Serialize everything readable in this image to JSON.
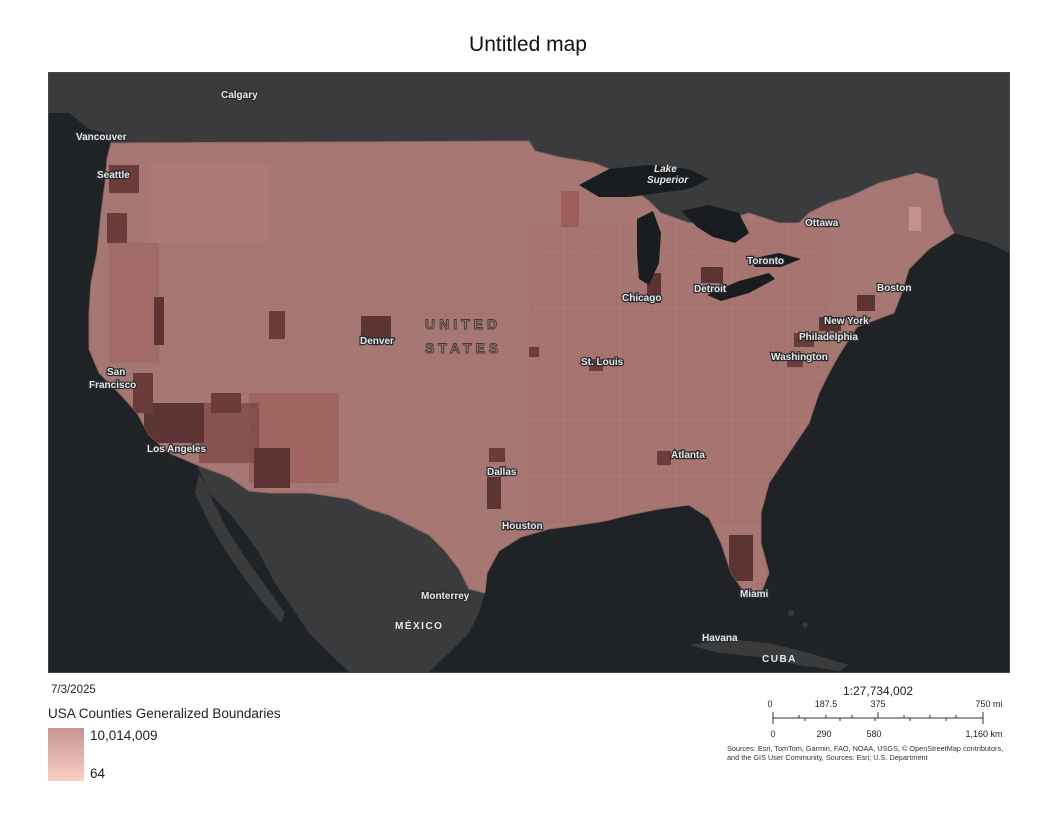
{
  "map": {
    "title": "Untitled map",
    "date": "7/3/2025",
    "legend": {
      "layer_title": "USA Counties Generalized Boundaries",
      "max_label": "10,014,009",
      "min_label": "64",
      "ramp_colors": [
        "#c79591",
        "#fbcfc7"
      ]
    },
    "scale": {
      "ratio": "1:27,734,002",
      "miles_ticks": [
        "0",
        "187.5",
        "375",
        "750 mi"
      ],
      "km_ticks": [
        "0",
        "290",
        "580",
        "1,160 km"
      ]
    },
    "attribution": "Sources: Esri, TomTom, Garmin, FAO, NOAA, USGS, © OpenStreetMap contributors, and the GIS User Community, Sources: Esri; U.S. Department",
    "basemap_colors": {
      "water": "#1f2326",
      "land": "#3a3b3c",
      "lake": "#1a1d20"
    },
    "choropleth_colors": {
      "low": "#a77773",
      "mid": "#b47a74",
      "high": "#5b3433"
    },
    "place_labels": {
      "calgary": "Calgary",
      "vancouver": "Vancouver",
      "seattle": "Seattle",
      "lake_superior_1": "Lake",
      "lake_superior_2": "Superior",
      "ottawa": "Ottawa",
      "toronto": "Toronto",
      "detroit": "Detroit",
      "chicago": "Chicago",
      "boston": "Boston",
      "new_york": "New York",
      "philadelphia": "Philadelphia",
      "washington": "Washington",
      "denver": "Denver",
      "united": "UNITED",
      "states": "STATES",
      "san_francisco_1": "San",
      "san_francisco_2": "Francisco",
      "st_louis": "St. Louis",
      "los_angeles": "Los Angeles",
      "atlanta": "Atlanta",
      "dallas": "Dallas",
      "houston": "Houston",
      "miami": "Miami",
      "monterrey": "Monterrey",
      "mexico": "MÉXICO",
      "havana": "Havana",
      "cuba": "CUBA"
    }
  }
}
